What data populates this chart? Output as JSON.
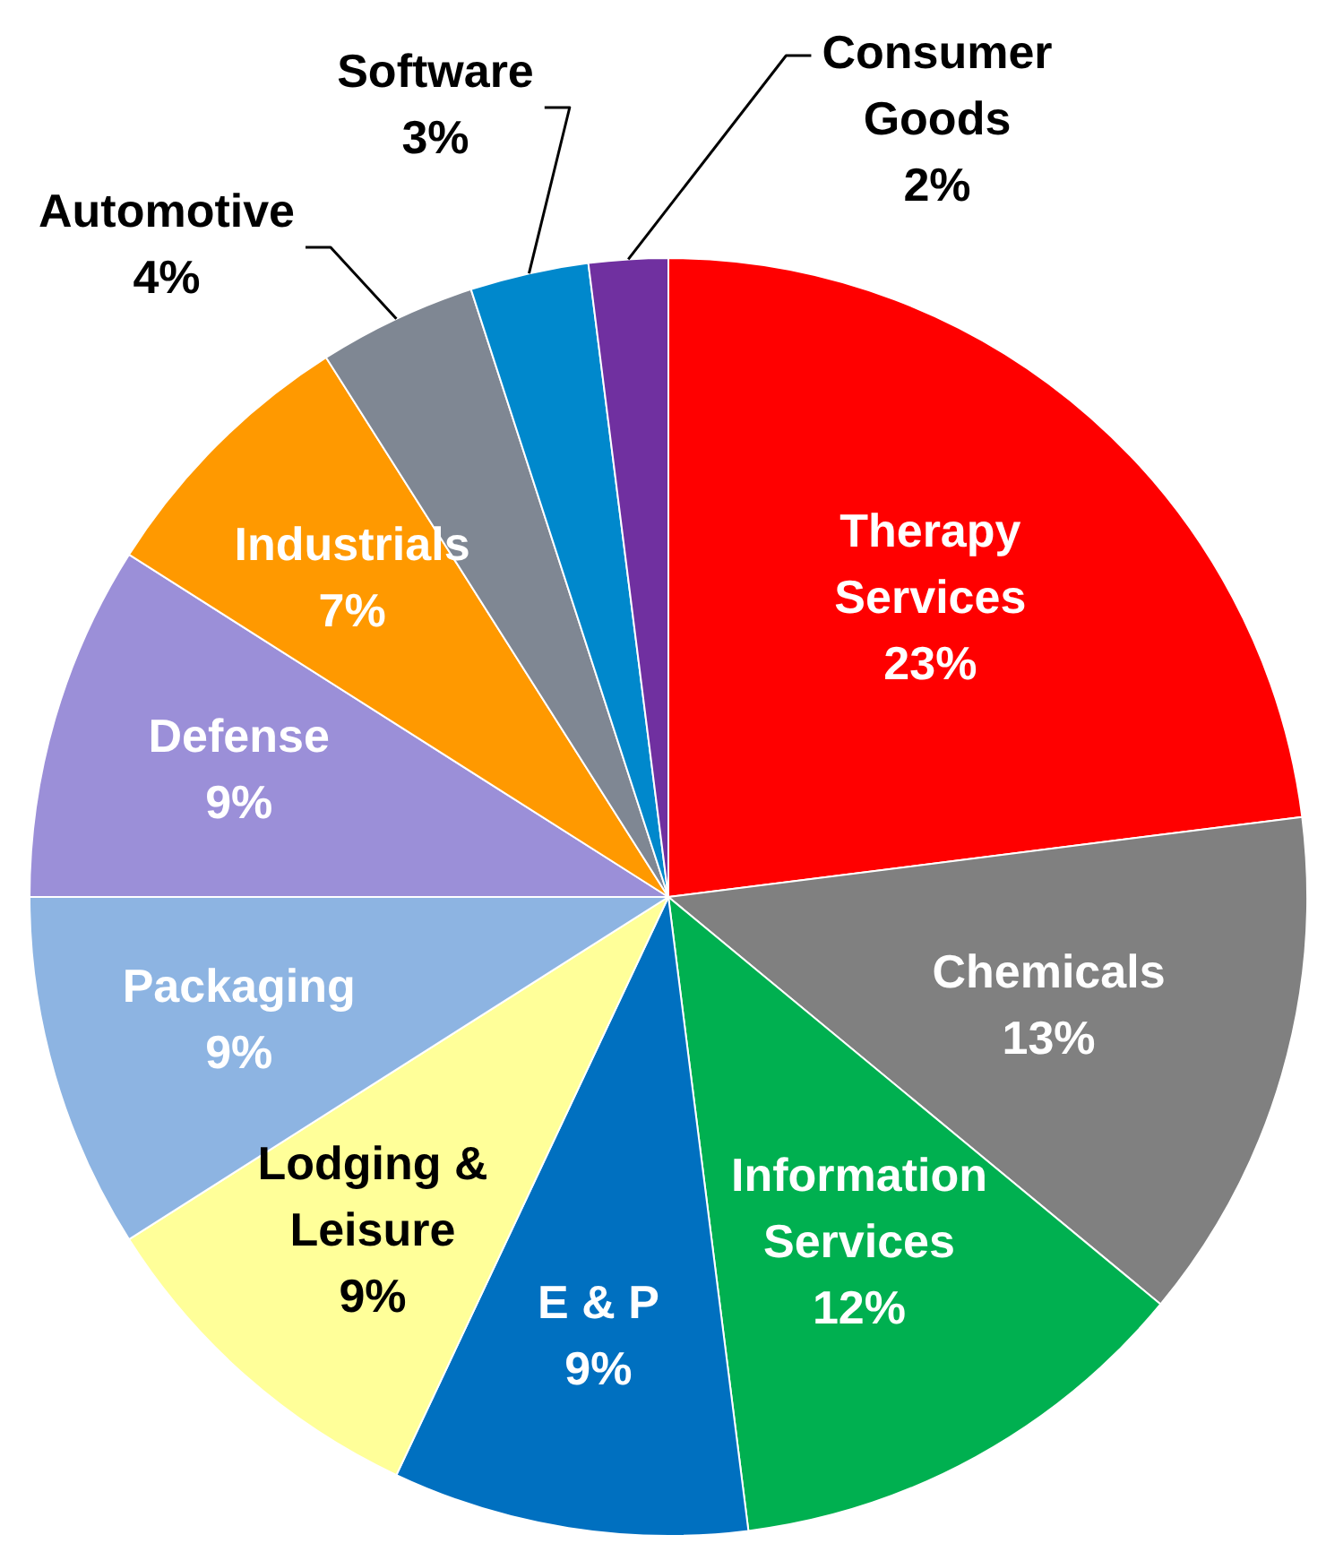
{
  "chart_data": {
    "type": "pie",
    "categories": [
      "Therapy Services",
      "Chemicals",
      "Information Services",
      "E & P",
      "Lodging & Leisure",
      "Packaging",
      "Defense",
      "Industrials",
      "Automotive",
      "Software",
      "Consumer Goods"
    ],
    "values": [
      23,
      13,
      12,
      9,
      9,
      9,
      9,
      7,
      4,
      3,
      2
    ],
    "colors": [
      "#ff0000",
      "#808080",
      "#00b050",
      "#0070c0",
      "#ffff99",
      "#8db4e2",
      "#9b8fd8",
      "#ff9900",
      "#7f8793",
      "#0088cc",
      "#7030a0"
    ],
    "value_labels": [
      "23%",
      "13%",
      "12%",
      "9%",
      "9%",
      "9%",
      "9%",
      "7%",
      "4%",
      "3%",
      "2%"
    ],
    "legend": false
  }
}
